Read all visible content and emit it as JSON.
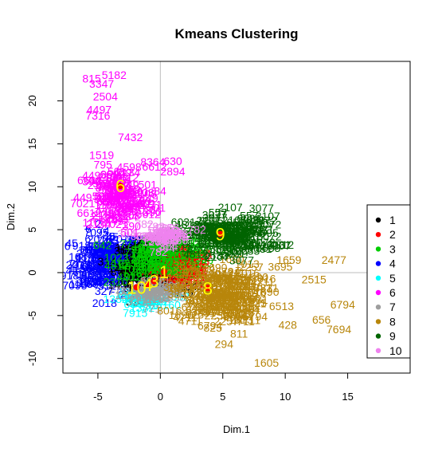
{
  "chart_data": {
    "type": "scatter",
    "title": "Kmeans Clustering",
    "xlabel": "Dim.1",
    "ylabel": "Dim.2",
    "xlim": [
      -7.8,
      20.0
    ],
    "ylim": [
      -11.7,
      24.6
    ],
    "x_ticks": [
      -5,
      0,
      5,
      10,
      15
    ],
    "y_ticks": [
      -10,
      -5,
      0,
      5,
      10,
      15,
      20
    ],
    "reference_lines": {
      "x": 0,
      "y": 0,
      "color": "#bebebe"
    },
    "legend": {
      "position": "right",
      "entries": [
        {
          "label": "1",
          "color": "#000000"
        },
        {
          "label": "2",
          "color": "#ff0000"
        },
        {
          "label": "3",
          "color": "#00cd00"
        },
        {
          "label": "4",
          "color": "#0000ff"
        },
        {
          "label": "5",
          "color": "#00ffff"
        },
        {
          "label": "6",
          "color": "#ff00ff"
        },
        {
          "label": "7",
          "color": "#9e9e9e"
        },
        {
          "label": "8",
          "color": "#b8860b"
        },
        {
          "label": "9",
          "color": "#006400"
        },
        {
          "label": "10",
          "color": "#ee82ee"
        }
      ]
    },
    "centroids": [
      {
        "label": "1",
        "x": 0.3,
        "y": 0.1
      },
      {
        "label": "3",
        "x": -0.5,
        "y": -1.0
      },
      {
        "label": "4",
        "x": -1.0,
        "y": -1.4
      },
      {
        "label": "8",
        "x": 3.8,
        "y": -1.8
      },
      {
        "label": "9",
        "x": 4.8,
        "y": 4.5
      },
      {
        "label": "10",
        "x": -1.9,
        "y": -1.7
      },
      {
        "label": "6",
        "x": -3.2,
        "y": 10.1
      }
    ],
    "clouds": [
      {
        "cluster": "4",
        "cx": -4.0,
        "cy": 1.2,
        "sx": 1.5,
        "sy": 1.8,
        "n": 180,
        "color": "#0000ff",
        "labels": [
          "2",
          "74",
          "6",
          "918",
          "103",
          "45",
          "2018",
          "1156",
          "660",
          "327",
          "7095",
          "3121"
        ]
      },
      {
        "cluster": "1",
        "cx": -0.8,
        "cy": 1.0,
        "sx": 1.2,
        "sy": 1.3,
        "n": 160,
        "color": "#000000",
        "labels": [
          "51",
          "314",
          "1033",
          "875",
          "2014",
          "1450",
          "302",
          "6642",
          "719"
        ]
      },
      {
        "cluster": "2",
        "cx": 1.8,
        "cy": 0.5,
        "sx": 0.9,
        "sy": 1.1,
        "n": 90,
        "color": "#ff0000",
        "labels": [
          "93",
          "2286",
          "477",
          "1095",
          "4123",
          "838",
          "57"
        ]
      },
      {
        "cluster": "3",
        "cx": 0.5,
        "cy": 2.0,
        "sx": 1.8,
        "sy": 1.2,
        "n": 80,
        "color": "#00cd00",
        "labels": [
          "9153",
          "4812",
          "2310",
          "7714",
          "1023",
          "642"
        ]
      },
      {
        "cluster": "5",
        "cx": -1.5,
        "cy": -3.1,
        "sx": 0.9,
        "sy": 0.4,
        "n": 35,
        "color": "#00ffff",
        "labels": [
          "31",
          "5160",
          "7915",
          "1382",
          "664"
        ]
      },
      {
        "cluster": "6",
        "cx": -3.3,
        "cy": 8.7,
        "sx": 1.4,
        "sy": 1.8,
        "n": 110,
        "color": "#ff00ff",
        "labels": [
          "501",
          "2134",
          "6612",
          "390",
          "84",
          "7021",
          "449",
          "1108"
        ]
      },
      {
        "cluster": "7",
        "cx": -0.5,
        "cy": -2.2,
        "sx": 1.0,
        "sy": 0.7,
        "n": 40,
        "color": "#9e9e9e",
        "labels": [
          "771",
          "1204",
          "3350",
          "6018"
        ]
      },
      {
        "cluster": "8",
        "cx": 4.7,
        "cy": -2.4,
        "sx": 1.6,
        "sy": 1.7,
        "n": 150,
        "color": "#b8860b",
        "labels": [
          "3831",
          "4711",
          "2257",
          "1690",
          "925",
          "8016",
          "6794",
          "1013"
        ]
      },
      {
        "cluster": "9",
        "cx": 5.6,
        "cy": 4.3,
        "sx": 1.8,
        "sy": 1.1,
        "n": 130,
        "color": "#006400",
        "labels": [
          "557",
          "8595",
          "4812",
          "6031",
          "3072",
          "2107",
          "3077",
          "9533"
        ]
      },
      {
        "cluster": "10",
        "cx": 0.3,
        "cy": 4.3,
        "sx": 1.0,
        "sy": 0.6,
        "n": 40,
        "color": "#ee82ee",
        "labels": [
          "1256",
          "8676",
          "304",
          "782"
        ]
      }
    ],
    "outliers": [
      {
        "label": "5182",
        "x": -3.7,
        "y": 23.0,
        "cluster": "6"
      },
      {
        "label": "815",
        "x": -5.5,
        "y": 22.6,
        "cluster": "6"
      },
      {
        "label": "3347",
        "x": -4.7,
        "y": 22.0,
        "cluster": "6"
      },
      {
        "label": "2504",
        "x": -4.4,
        "y": 20.5,
        "cluster": "6"
      },
      {
        "label": "4497",
        "x": -4.9,
        "y": 19.0,
        "cluster": "6"
      },
      {
        "label": "7316",
        "x": -5.0,
        "y": 18.3,
        "cluster": "6"
      },
      {
        "label": "7432",
        "x": -2.4,
        "y": 15.8,
        "cluster": "6"
      },
      {
        "label": "1519",
        "x": -4.7,
        "y": 13.7,
        "cluster": "6"
      },
      {
        "label": "795",
        "x": -4.6,
        "y": 12.6,
        "cluster": "6"
      },
      {
        "label": "4598",
        "x": -2.5,
        "y": 12.3,
        "cluster": "6"
      },
      {
        "label": "8364",
        "x": -0.6,
        "y": 12.9,
        "cluster": "6"
      },
      {
        "label": "630",
        "x": 1.0,
        "y": 13.0,
        "cluster": "6"
      },
      {
        "label": "2894",
        "x": 1.0,
        "y": 11.8,
        "cluster": "6"
      },
      {
        "label": "1659",
        "x": 10.3,
        "y": 1.5,
        "cluster": "8"
      },
      {
        "label": "2477",
        "x": 13.9,
        "y": 1.5,
        "cluster": "8"
      },
      {
        "label": "3695",
        "x": 9.6,
        "y": 0.7,
        "cluster": "8"
      },
      {
        "label": "2515",
        "x": 12.3,
        "y": -0.8,
        "cluster": "8"
      },
      {
        "label": "6513",
        "x": 9.7,
        "y": -3.9,
        "cluster": "8"
      },
      {
        "label": "6794",
        "x": 14.6,
        "y": -3.7,
        "cluster": "8"
      },
      {
        "label": "656",
        "x": 12.9,
        "y": -5.5,
        "cluster": "8"
      },
      {
        "label": "428",
        "x": 10.2,
        "y": -6.1,
        "cluster": "8"
      },
      {
        "label": "7694",
        "x": 14.3,
        "y": -6.6,
        "cluster": "8"
      },
      {
        "label": "1605",
        "x": 8.5,
        "y": -10.5,
        "cluster": "8"
      },
      {
        "label": "294",
        "x": 5.1,
        "y": -8.3,
        "cluster": "8"
      },
      {
        "label": "811",
        "x": 6.3,
        "y": -7.1,
        "cluster": "8"
      },
      {
        "label": "825",
        "x": 4.2,
        "y": -6.4,
        "cluster": "8"
      },
      {
        "label": "6794",
        "x": 7.6,
        "y": -5.1,
        "cluster": "8"
      },
      {
        "label": "3072",
        "x": 8.7,
        "y": 5.6,
        "cluster": "9"
      },
      {
        "label": "2107",
        "x": 5.6,
        "y": 7.6,
        "cluster": "9"
      },
      {
        "label": "3077",
        "x": 8.1,
        "y": 7.5,
        "cluster": "9"
      },
      {
        "label": "557",
        "x": 4.6,
        "y": 7.0,
        "cluster": "9"
      }
    ]
  }
}
